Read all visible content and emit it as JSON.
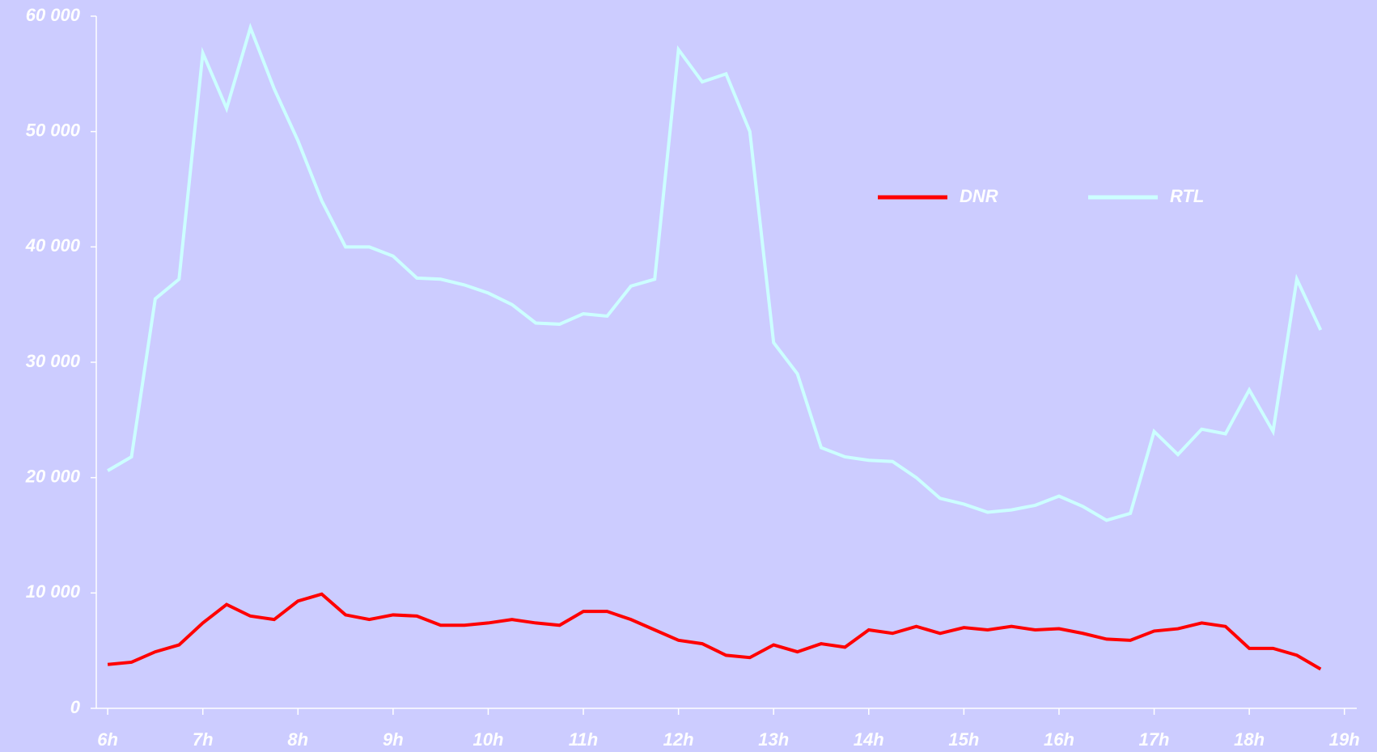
{
  "chart_data": {
    "type": "line",
    "x": [
      6,
      6.25,
      6.5,
      6.75,
      7,
      7.25,
      7.5,
      7.75,
      8,
      8.25,
      8.5,
      8.75,
      9,
      9.25,
      9.5,
      9.75,
      10,
      10.25,
      10.5,
      10.75,
      11,
      11.25,
      11.5,
      11.75,
      12,
      12.25,
      12.5,
      12.75,
      13,
      13.25,
      13.5,
      13.75,
      14,
      14.25,
      14.5,
      14.75,
      15,
      15.25,
      15.5,
      15.75,
      16,
      16.25,
      16.5,
      16.75,
      17,
      17.25,
      17.5,
      17.75,
      18,
      18.25,
      18.5,
      18.75
    ],
    "series": [
      {
        "name": "DNR",
        "color": "#ff0000",
        "values": [
          3800,
          4000,
          4900,
          5500,
          7400,
          9000,
          8000,
          7700,
          9300,
          9900,
          8100,
          7700,
          8100,
          8000,
          7200,
          7200,
          7400,
          7700,
          7400,
          7200,
          8400,
          8400,
          7700,
          6800,
          5900,
          5600,
          4600,
          4400,
          5500,
          4900,
          5600,
          5300,
          6800,
          6500,
          7100,
          6500,
          7000,
          6800,
          7100,
          6800,
          6900,
          6500,
          6000,
          5900,
          6700,
          6900,
          7400,
          7100,
          5200,
          5200,
          4600,
          3400
        ]
      },
      {
        "name": "RTL",
        "color": "#ccffff",
        "values": [
          20600,
          21800,
          35500,
          37200,
          56800,
          52000,
          59000,
          53700,
          49200,
          44000,
          40000,
          40000,
          39200,
          37300,
          37200,
          36700,
          36000,
          35000,
          33400,
          33300,
          34200,
          34000,
          36600,
          37200,
          57100,
          54300,
          55000,
          50000,
          31700,
          29000,
          22600,
          21800,
          21500,
          21400,
          20000,
          18200,
          17700,
          17000,
          17200,
          17600,
          18400,
          17500,
          16300,
          16900,
          24000,
          22000,
          24200,
          23800,
          27600,
          24000,
          37200,
          32800
        ]
      }
    ],
    "xlim": [
      5.88,
      19.13
    ],
    "xticks": [
      {
        "value": 6,
        "label": "6h"
      },
      {
        "value": 7,
        "label": "7h"
      },
      {
        "value": 8,
        "label": "8h"
      },
      {
        "value": 9,
        "label": "9h"
      },
      {
        "value": 10,
        "label": "10h"
      },
      {
        "value": 11,
        "label": "11h"
      },
      {
        "value": 12,
        "label": "12h"
      },
      {
        "value": 13,
        "label": "13h"
      },
      {
        "value": 14,
        "label": "14h"
      },
      {
        "value": 15,
        "label": "15h"
      },
      {
        "value": 16,
        "label": "16h"
      },
      {
        "value": 17,
        "label": "17h"
      },
      {
        "value": 18,
        "label": "18h"
      },
      {
        "value": 19,
        "label": "19h"
      }
    ],
    "ylim": [
      0,
      60000
    ],
    "yticks": [
      0,
      {
        "value": 10000,
        "label": "10 000"
      },
      {
        "value": 20000,
        "label": "20 000"
      },
      {
        "value": 30000,
        "label": "30 000"
      },
      {
        "value": 40000,
        "label": "40 000"
      },
      {
        "value": 50000,
        "label": "50 000"
      },
      {
        "value": 60000,
        "label": "60 000"
      }
    ]
  }
}
